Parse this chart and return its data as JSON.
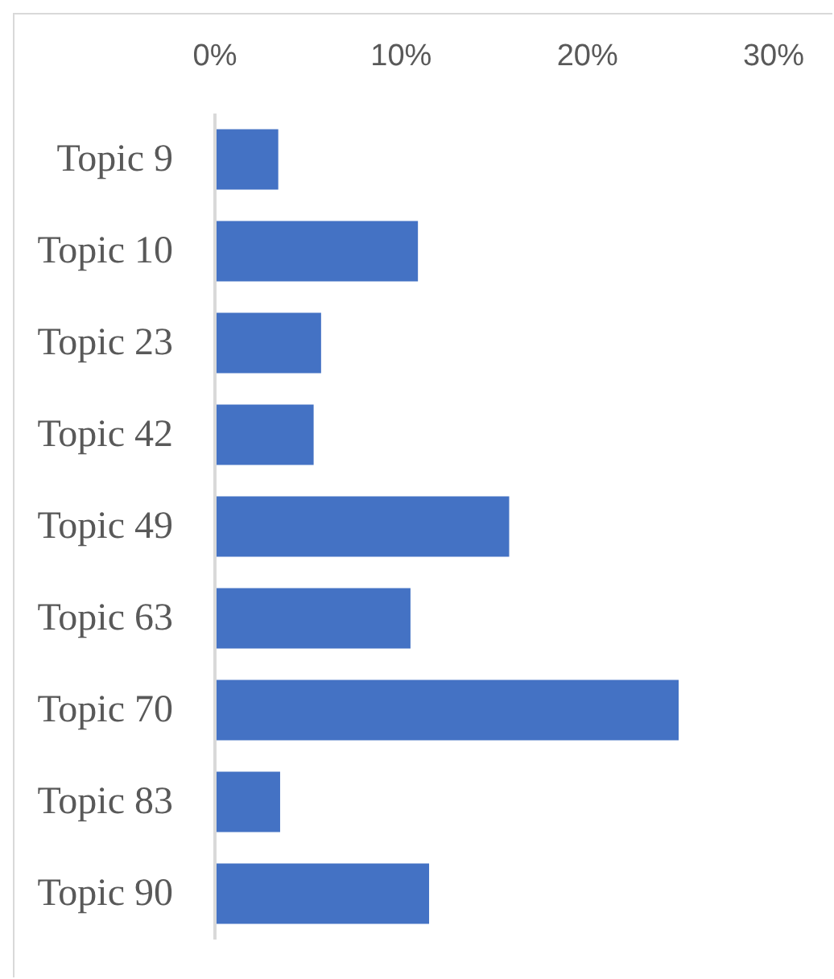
{
  "chart_data": {
    "type": "bar",
    "orientation": "horizontal",
    "categories": [
      "Topic 9",
      "Topic 10",
      "Topic 23",
      "Topic 42",
      "Topic 49",
      "Topic 63",
      "Topic 70",
      "Topic 83",
      "Topic 90"
    ],
    "values": [
      3.4,
      10.9,
      5.7,
      5.3,
      15.8,
      10.5,
      24.9,
      3.5,
      11.5
    ],
    "color": "#4472c4",
    "xlim": [
      0,
      30
    ],
    "xticks": [
      {
        "value": 0,
        "label": "0%"
      },
      {
        "value": 10,
        "label": "10%"
      },
      {
        "value": 20,
        "label": "20%"
      },
      {
        "value": 30,
        "label": "30%"
      }
    ],
    "grid": false
  }
}
